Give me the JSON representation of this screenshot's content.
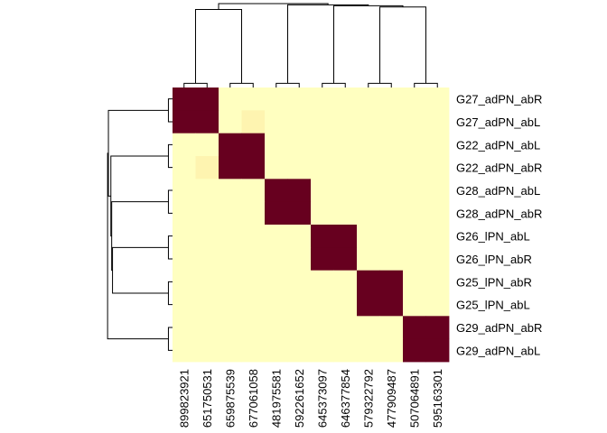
{
  "chart_data": {
    "type": "heatmap",
    "title": "",
    "xlabel": "",
    "ylabel": "",
    "rows": [
      "G27_adPN_abR",
      "G27_adPN_abL",
      "G22_adPN_abL",
      "G22_adPN_abR",
      "G28_adPN_abL",
      "G28_adPN_abR",
      "G26_lPN_abL",
      "G26_lPN_abR",
      "G25_lPN_abR",
      "G25_lPN_abL",
      "G29_adPN_abR",
      "G29_adPN_abL"
    ],
    "columns": [
      "899823921",
      "651750531",
      "659875539",
      "677061058",
      "481975581",
      "592261652",
      "645373097",
      "646377854",
      "579322792",
      "477909487",
      "507064891",
      "595163301"
    ],
    "values": [
      [
        1,
        1,
        0,
        0,
        0,
        0,
        0,
        0,
        0,
        0,
        0,
        0
      ],
      [
        1,
        1,
        0,
        0.15,
        0,
        0,
        0,
        0,
        0,
        0,
        0,
        0
      ],
      [
        0,
        0,
        1,
        1,
        0,
        0,
        0,
        0,
        0,
        0,
        0,
        0
      ],
      [
        0,
        0.15,
        1,
        1,
        0,
        0,
        0,
        0,
        0,
        0,
        0,
        0
      ],
      [
        0,
        0,
        0,
        0,
        1,
        1,
        0,
        0,
        0,
        0,
        0,
        0
      ],
      [
        0,
        0,
        0,
        0,
        1,
        1,
        0,
        0,
        0,
        0,
        0,
        0
      ],
      [
        0,
        0,
        0,
        0,
        0,
        0,
        1,
        1,
        0,
        0,
        0,
        0
      ],
      [
        0,
        0,
        0,
        0,
        0,
        0,
        1,
        1,
        0,
        0,
        0,
        0
      ],
      [
        0,
        0,
        0,
        0,
        0,
        0,
        0,
        0,
        1,
        1,
        0,
        0
      ],
      [
        0,
        0,
        0,
        0,
        0,
        0,
        0,
        0,
        1,
        1,
        0,
        0
      ],
      [
        0,
        0,
        0,
        0,
        0,
        0,
        0,
        0,
        0,
        0,
        1,
        1
      ],
      [
        0,
        0,
        0,
        0,
        0,
        0,
        0,
        0,
        0,
        0,
        1,
        1
      ]
    ],
    "color_scale": {
      "low": "#ffffc0",
      "mid": "#fdd98c",
      "high": "#67001f"
    },
    "row_dendrogram": [
      {
        "a": 0,
        "b": 1,
        "h": 0.05
      },
      {
        "a": 2,
        "b": 3,
        "h": 0.05
      },
      {
        "a": 4,
        "b": 5,
        "h": 0.05
      },
      {
        "a": 6,
        "b": 7,
        "h": 0.05
      },
      {
        "a": 8,
        "b": 9,
        "h": 0.05
      },
      {
        "a": 10,
        "b": 11,
        "h": 0.05
      },
      {
        "a": 15,
        "b": 16,
        "h": 0.73
      },
      {
        "a": 14,
        "b": 18,
        "h": 0.74
      },
      {
        "a": 13,
        "b": 19,
        "h": 0.75
      },
      {
        "a": 12,
        "b": 20,
        "h": 0.78
      },
      {
        "a": 17,
        "b": 21,
        "h": 0.79
      }
    ],
    "col_dendrogram": [
      {
        "a": 0,
        "b": 1,
        "h": 0.05
      },
      {
        "a": 2,
        "b": 3,
        "h": 0.05
      },
      {
        "a": 4,
        "b": 5,
        "h": 0.05
      },
      {
        "a": 6,
        "b": 7,
        "h": 0.05
      },
      {
        "a": 8,
        "b": 9,
        "h": 0.05
      },
      {
        "a": 10,
        "b": 11,
        "h": 0.05
      },
      {
        "a": 12,
        "b": 13,
        "h": 0.93
      },
      {
        "a": 16,
        "b": 17,
        "h": 0.96
      },
      {
        "a": 15,
        "b": 19,
        "h": 0.975
      },
      {
        "a": 14,
        "b": 20,
        "h": 0.985
      },
      {
        "a": 18,
        "b": 21,
        "h": 1.0
      }
    ]
  }
}
